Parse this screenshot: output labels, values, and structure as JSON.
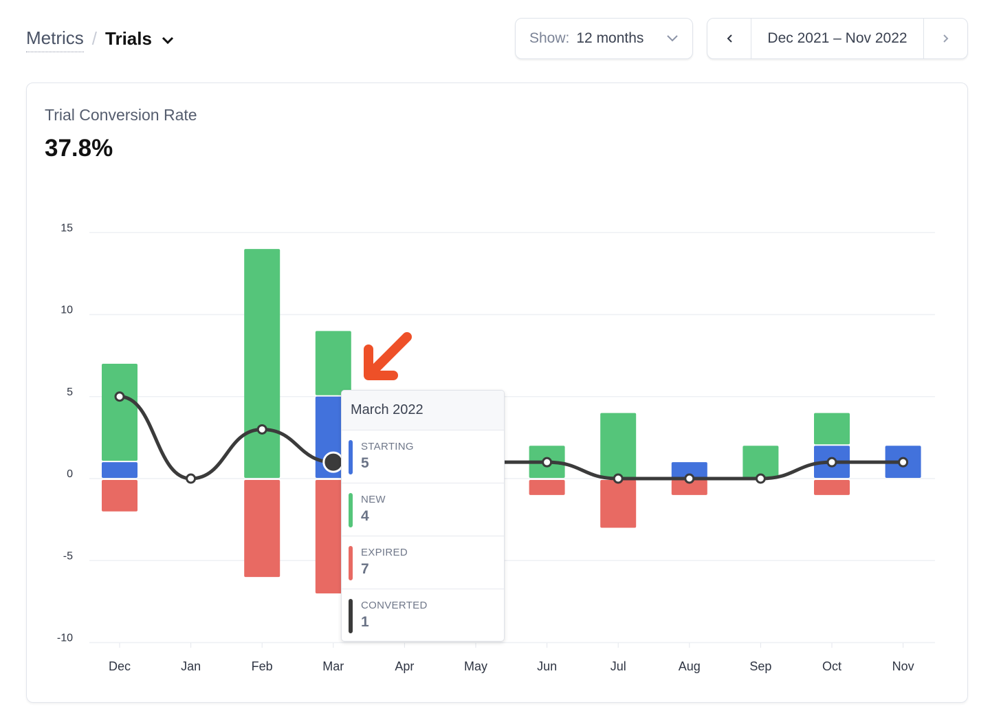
{
  "breadcrumb": {
    "parent": "Metrics",
    "separator": "/",
    "current": "Trials"
  },
  "show": {
    "label": "Show:",
    "value": "12 months"
  },
  "range": {
    "label": "Dec 2021 – Nov 2022"
  },
  "card": {
    "title": "Trial Conversion Rate",
    "value": "37.8%"
  },
  "colors": {
    "starting": "#4272dc",
    "new": "#55c57a",
    "expired": "#e86a63",
    "converted": "#3b3b3b",
    "arrow": "#ee5028"
  },
  "chart_data": {
    "type": "bar",
    "categories": [
      "Dec",
      "Jan",
      "Feb",
      "Mar",
      "Apr",
      "May",
      "Jun",
      "Jul",
      "Aug",
      "Sep",
      "Oct",
      "Nov"
    ],
    "yticks": [
      15,
      10,
      5,
      0,
      -5,
      -10
    ],
    "ylim": [
      -10,
      15
    ],
    "series": [
      {
        "name": "Starting",
        "values": [
          1,
          0,
          0,
          5,
          0,
          0,
          0,
          0,
          1,
          0,
          2,
          2
        ]
      },
      {
        "name": "New",
        "values": [
          6,
          0,
          14,
          4,
          0,
          0,
          2,
          4,
          0,
          2,
          2,
          0
        ]
      },
      {
        "name": "Expired",
        "values": [
          -2,
          0,
          -6,
          -7,
          0,
          0,
          -1,
          -3,
          -1,
          0,
          -1,
          0
        ]
      },
      {
        "name": "Converted",
        "type": "line",
        "values": [
          5,
          0,
          3,
          1,
          1,
          1,
          1,
          0,
          0,
          0,
          1,
          1
        ]
      }
    ],
    "highlighted": "Mar"
  },
  "tooltip": {
    "title": "March 2022",
    "rows": [
      {
        "label": "STARTING",
        "value": "5"
      },
      {
        "label": "NEW",
        "value": "4"
      },
      {
        "label": "EXPIRED",
        "value": "7"
      },
      {
        "label": "CONVERTED",
        "value": "1"
      }
    ]
  }
}
